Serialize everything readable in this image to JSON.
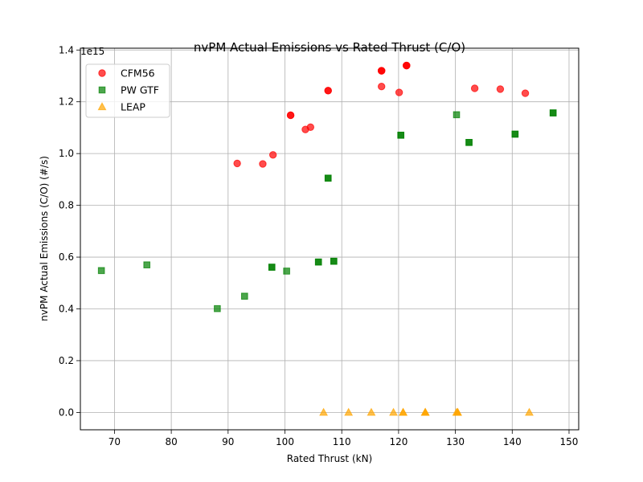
{
  "chart_data": {
    "type": "scatter",
    "title": "nvPM Actual Emissions vs Rated Thrust (C/O)",
    "xlabel": "Rated Thrust (kN)",
    "ylabel": "nvPM Actual Emissions (C/O) (#/s)",
    "y_offset_label": "1e15",
    "y_scale": 1000000000000000.0,
    "xlim": [
      64,
      151.7
    ],
    "ylim": [
      -67000000000000.0,
      1407000000000000.0
    ],
    "x_ticks": [
      70,
      80,
      90,
      100,
      110,
      120,
      130,
      140,
      150
    ],
    "x_tick_labels": [
      "70",
      "80",
      "90",
      "100",
      "110",
      "120",
      "130",
      "140",
      "150"
    ],
    "y_ticks": [
      0,
      200000000000000.0,
      400000000000000.0,
      600000000000000.0,
      800000000000000.0,
      1000000000000000.0,
      1200000000000000.0,
      1400000000000000.0
    ],
    "y_tick_labels": [
      "0.0",
      "0.2",
      "0.4",
      "0.6",
      "0.8",
      "1.0",
      "1.2",
      "1.4"
    ],
    "grid": true,
    "legend_position": "top-left",
    "series": [
      {
        "name": "CFM56",
        "marker": "circle",
        "color": "#ff0000",
        "points": [
          [
            91.6,
            962000000000000.0
          ],
          [
            96.1,
            960000000000000.0
          ],
          [
            97.9,
            995000000000000.0
          ],
          [
            101.0,
            1148000000000000.0
          ],
          [
            101.0,
            1148000000000000.0
          ],
          [
            103.6,
            1093000000000000.0
          ],
          [
            104.5,
            1102000000000000.0
          ],
          [
            107.6,
            1243000000000000.0
          ],
          [
            107.6,
            1243000000000000.0
          ],
          [
            117.0,
            1320000000000000.0
          ],
          [
            117.0,
            1320000000000000.0
          ],
          [
            117.0,
            1320000000000000.0
          ],
          [
            117.0,
            1259000000000000.0
          ],
          [
            120.1,
            1236000000000000.0
          ],
          [
            121.4,
            1340000000000000.0
          ],
          [
            121.4,
            1340000000000000.0
          ],
          [
            121.4,
            1340000000000000.0
          ],
          [
            133.4,
            1252000000000000.0
          ],
          [
            137.9,
            1249000000000000.0
          ],
          [
            142.3,
            1233000000000000.0
          ]
        ]
      },
      {
        "name": "PW GTF",
        "marker": "square",
        "color": "#008000",
        "points": [
          [
            67.7,
            548000000000000.0
          ],
          [
            75.7,
            570000000000000.0
          ],
          [
            88.1,
            401000000000000.0
          ],
          [
            92.9,
            449000000000000.0
          ],
          [
            97.7,
            561000000000000.0
          ],
          [
            97.7,
            561000000000000.0
          ],
          [
            100.3,
            546000000000000.0
          ],
          [
            105.9,
            581000000000000.0
          ],
          [
            105.9,
            581000000000000.0
          ],
          [
            107.6,
            905000000000000.0
          ],
          [
            107.6,
            905000000000000.0
          ],
          [
            108.6,
            584000000000000.0
          ],
          [
            108.6,
            584000000000000.0
          ],
          [
            120.4,
            1071000000000000.0
          ],
          [
            120.4,
            1071000000000000.0
          ],
          [
            130.2,
            1150000000000000.0
          ],
          [
            132.4,
            1043000000000000.0
          ],
          [
            132.4,
            1043000000000000.0
          ],
          [
            140.5,
            1075000000000000.0
          ],
          [
            140.5,
            1075000000000000.0
          ],
          [
            147.2,
            1157000000000000.0
          ],
          [
            147.2,
            1157000000000000.0
          ]
        ]
      },
      {
        "name": "LEAP",
        "marker": "triangle",
        "color": "#ffa500",
        "points": [
          [
            106.8,
            0
          ],
          [
            111.2,
            0
          ],
          [
            115.2,
            0
          ],
          [
            119.1,
            0
          ],
          [
            120.8,
            0
          ],
          [
            120.8,
            0
          ],
          [
            124.7,
            0
          ],
          [
            124.7,
            0
          ],
          [
            124.7,
            0
          ],
          [
            130.2,
            0
          ],
          [
            130.4,
            0
          ],
          [
            130.4,
            0
          ],
          [
            143.0,
            0
          ]
        ]
      }
    ]
  }
}
